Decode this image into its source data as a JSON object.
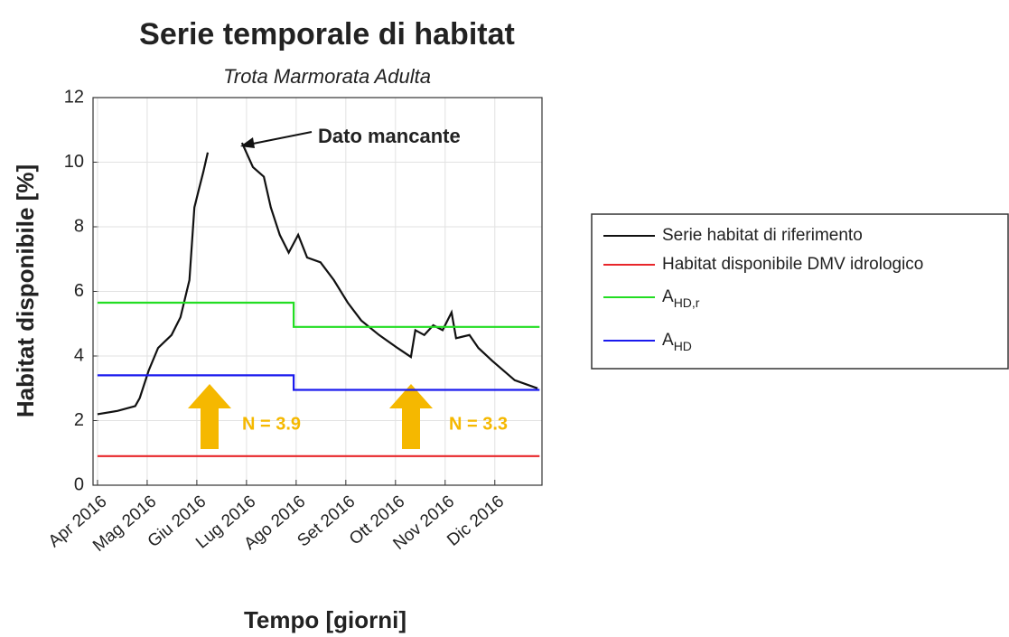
{
  "chart_data": {
    "type": "line",
    "title": "Serie temporale di habitat",
    "subtitle": "Trota Marmorata Adulta",
    "x_label": "Tempo [giorni]",
    "y_label": "Habitat disponibile [%]",
    "xlim": [
      3.91,
      12.95
    ],
    "xticks": [
      {
        "value": 4,
        "label": "Apr 2016"
      },
      {
        "value": 5,
        "label": "Mag 2016"
      },
      {
        "value": 6,
        "label": "Giu 2016"
      },
      {
        "value": 7,
        "label": "Lug 2016"
      },
      {
        "value": 8,
        "label": "Ago 2016"
      },
      {
        "value": 9,
        "label": "Set 2016"
      },
      {
        "value": 10,
        "label": "Ott 2016"
      },
      {
        "value": 11,
        "label": "Nov 2016"
      },
      {
        "value": 12,
        "label": "Dic 2016"
      }
    ],
    "ylim": [
      0,
      12
    ],
    "yticks": [
      0,
      2,
      4,
      6,
      8,
      10,
      12
    ],
    "grid": true,
    "legend": "outside-right",
    "series": [
      {
        "name": "Serie habitat di riferimento",
        "color": "#111111",
        "x": [
          4.0,
          4.4,
          4.76,
          4.85,
          5.03,
          5.22,
          5.49,
          5.67,
          5.85,
          5.95,
          6.04,
          6.13,
          6.22,
          6.56,
          6.91,
          7.13,
          7.35,
          7.49,
          7.67,
          7.85,
          8.04,
          8.22,
          8.49,
          8.76,
          9.04,
          9.31,
          9.67,
          10.04,
          10.31,
          10.4,
          10.58,
          10.76,
          10.95,
          11.13,
          11.22,
          11.49,
          11.67,
          11.95,
          12.4,
          12.86
        ],
        "values": [
          2.2,
          2.3,
          2.45,
          2.7,
          3.55,
          4.25,
          4.65,
          5.2,
          6.35,
          8.6,
          9.15,
          9.7,
          10.3,
          null,
          10.6,
          9.85,
          9.55,
          8.6,
          7.75,
          7.2,
          7.75,
          7.05,
          6.9,
          6.35,
          5.65,
          5.1,
          4.65,
          4.25,
          3.97,
          4.8,
          4.65,
          4.95,
          4.8,
          5.35,
          4.55,
          4.65,
          4.25,
          3.85,
          3.25,
          3.0
        ]
      },
      {
        "name": "Habitat disponibile DMV idrologico",
        "color": "#e8262a",
        "x": [
          4.0,
          12.9
        ],
        "values": [
          0.9,
          0.9
        ]
      },
      {
        "name": "A",
        "name_subscript": "HD,r",
        "color": "#22dd22",
        "x": [
          4.0,
          7.95,
          7.95,
          12.9
        ],
        "values": [
          5.65,
          5.65,
          4.9,
          4.9
        ]
      },
      {
        "name": "A",
        "name_subscript": "HD",
        "color": "#1a1aee",
        "x": [
          4.0,
          7.95,
          7.95,
          12.9
        ],
        "values": [
          3.4,
          3.4,
          2.95,
          2.95
        ]
      }
    ],
    "annotations": [
      {
        "text": "Dato mancante"
      },
      {
        "text": "N = 3.9"
      },
      {
        "text": "N = 3.3"
      }
    ]
  }
}
